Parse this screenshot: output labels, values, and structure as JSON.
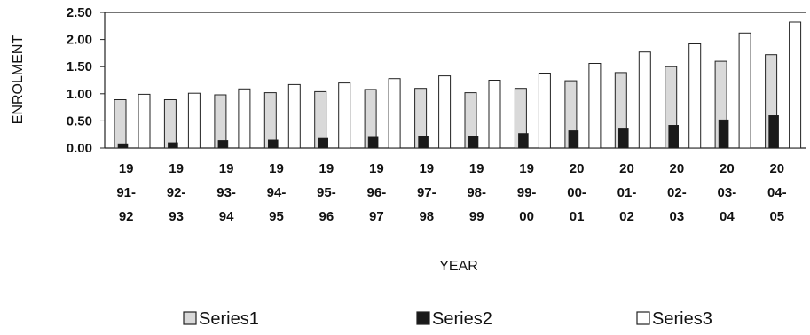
{
  "chart_data": {
    "type": "bar",
    "title": "",
    "xlabel": "YEAR",
    "ylabel": "ENROLMENT",
    "ylim": [
      0,
      2.5
    ],
    "yticks": [
      "0.00",
      "0.50",
      "1.00",
      "1.50",
      "2.00",
      "2.50"
    ],
    "categories": [
      [
        "19",
        "91-",
        "92"
      ],
      [
        "19",
        "92-",
        "93"
      ],
      [
        "19",
        "93-",
        "94"
      ],
      [
        "19",
        "94-",
        "95"
      ],
      [
        "19",
        "95-",
        "96"
      ],
      [
        "19",
        "96-",
        "97"
      ],
      [
        "19",
        "97-",
        "98"
      ],
      [
        "19",
        "98-",
        "99"
      ],
      [
        "19",
        "99-",
        "00"
      ],
      [
        "20",
        "00-",
        "01"
      ],
      [
        "20",
        "01-",
        "02"
      ],
      [
        "20",
        "02-",
        "03"
      ],
      [
        "20",
        "03-",
        "04"
      ],
      [
        "20",
        "04-",
        "05"
      ]
    ],
    "series": [
      {
        "name": "Series1",
        "color": "#d9d9d9",
        "values": [
          0.89,
          0.89,
          0.98,
          1.02,
          1.04,
          1.08,
          1.1,
          1.02,
          1.1,
          1.24,
          1.39,
          1.5,
          1.6,
          1.72
        ]
      },
      {
        "name": "Series2",
        "color": "#1a1a1a",
        "values": [
          0.08,
          0.1,
          0.14,
          0.15,
          0.18,
          0.2,
          0.22,
          0.22,
          0.27,
          0.32,
          0.37,
          0.42,
          0.52,
          0.6
        ]
      },
      {
        "name": "Series3",
        "color": "#ffffff",
        "values": [
          0.99,
          1.01,
          1.09,
          1.17,
          1.2,
          1.28,
          1.33,
          1.25,
          1.38,
          1.56,
          1.77,
          1.92,
          2.12,
          2.32
        ]
      }
    ],
    "grid": false,
    "legend": "bottom"
  }
}
